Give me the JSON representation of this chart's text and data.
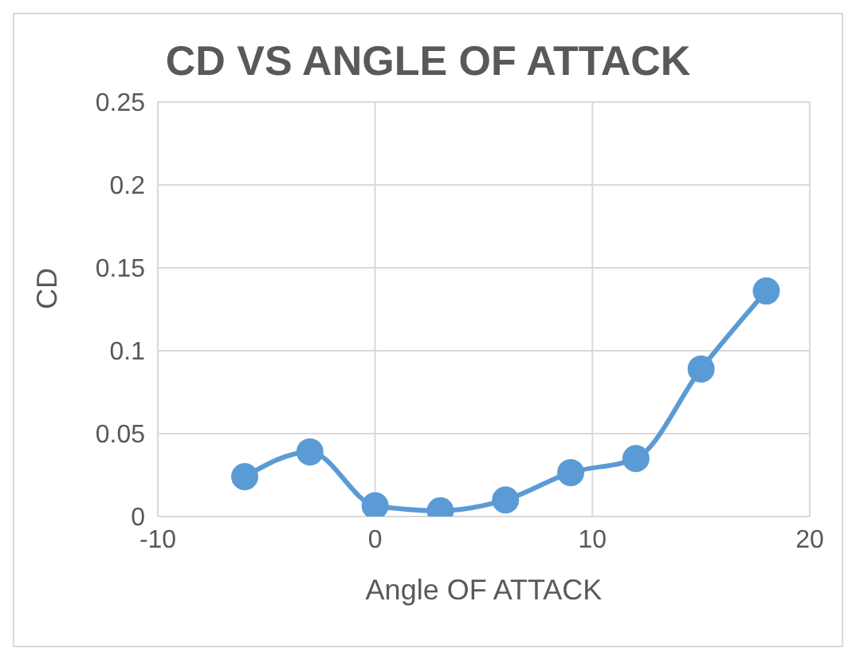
{
  "chart_data": {
    "type": "line",
    "title": "CD VS ANGLE OF ATTACK",
    "xlabel": "Angle OF ATTACK",
    "ylabel": "CD",
    "x": [
      -6,
      -3,
      0,
      3,
      6,
      9,
      12,
      15,
      18
    ],
    "series": [
      {
        "color": "#5b9bd5",
        "values": [
          0.024,
          0.039,
          0.0065,
          0.0035,
          0.01,
          0.0265,
          0.035,
          0.089,
          0.136
        ]
      }
    ],
    "xlim": [
      -10,
      20
    ],
    "xticks": [
      -10,
      0,
      10,
      20
    ],
    "ylim": [
      0,
      0.25
    ],
    "yticks": [
      0,
      0.05,
      0.1,
      0.15,
      0.2,
      0.25
    ],
    "grid": true,
    "marker": "circle",
    "legend": false
  }
}
